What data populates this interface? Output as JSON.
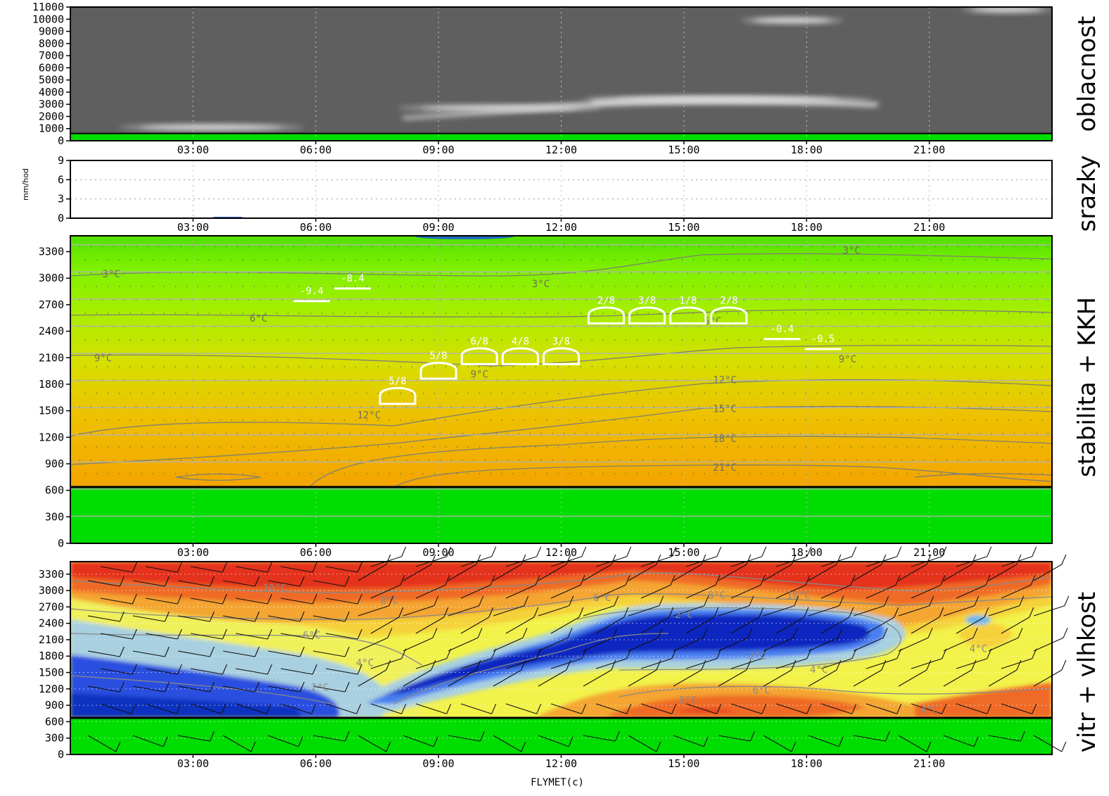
{
  "colors": {
    "cloud_bg": "#5f5f5f",
    "ground": "#00dd00",
    "frame": "#000000"
  },
  "credit": "FLYMET(c)",
  "time_ticks": [
    "03:00",
    "06:00",
    "09:00",
    "12:00",
    "15:00",
    "18:00",
    "21:00"
  ],
  "panels": [
    {
      "id": "cloud",
      "title": "oblacnost",
      "y_ticks": [
        "0",
        "1000",
        "2000",
        "3000",
        "4000",
        "5000",
        "6000",
        "7000",
        "8000",
        "9000",
        "10000",
        "11000"
      ]
    },
    {
      "id": "precip",
      "title": "srazky",
      "unit": "mm/hod",
      "y_ticks": [
        "0",
        "3",
        "6",
        "9"
      ]
    },
    {
      "id": "stability",
      "title": "stabilita + KKH",
      "y_ticks": [
        "0",
        "300",
        "600",
        "900",
        "1200",
        "1500",
        "1800",
        "2100",
        "2400",
        "2700",
        "3000",
        "3300"
      ]
    },
    {
      "id": "wind",
      "title": "vitr + vlhkost",
      "y_ticks": [
        "0",
        "300",
        "600",
        "900",
        "1200",
        "1500",
        "1800",
        "2100",
        "2400",
        "2700",
        "3000",
        "3300"
      ]
    }
  ],
  "chart_data": [
    {
      "type": "heatmap",
      "title": "oblacnost",
      "xlabel": "",
      "ylabel": "",
      "x_range_hours": [
        0,
        24
      ],
      "ylim": [
        0,
        11000
      ],
      "cloud_layers": [
        {
          "start_h": 1.2,
          "end_h": 5.7,
          "alt": 1100
        },
        {
          "start_h": 8.0,
          "end_h": 13.0,
          "alt": 2700
        },
        {
          "start_h": 12.5,
          "end_h": 19.6,
          "alt": 3400
        },
        {
          "start_h": 16.4,
          "end_h": 18.9,
          "alt": 9900
        },
        {
          "start_h": 21.8,
          "end_h": 24.0,
          "alt": 10800
        }
      ],
      "ground_alt": 600
    },
    {
      "type": "line",
      "title": "srazky",
      "ylabel": "mm/hod",
      "ylim": [
        0,
        9
      ],
      "x_range_hours": [
        0,
        24
      ],
      "precip_trace": [
        {
          "start_h": 3.5,
          "end_h": 4.2,
          "value": 0.1
        }
      ]
    },
    {
      "type": "heatmap",
      "title": "stabilita + KKH",
      "ylim": [
        0,
        3400
      ],
      "x_range_hours": [
        0,
        24
      ],
      "ground_alt": 600,
      "isotherm_labels": [
        {
          "text": "3°C",
          "h": 1.0,
          "alt": 2980
        },
        {
          "text": "3°C",
          "h": 11.5,
          "alt": 2870
        },
        {
          "text": "3°C",
          "h": 19.1,
          "alt": 3240
        },
        {
          "text": "6°C",
          "h": 4.6,
          "alt": 2490
        },
        {
          "text": "6°C",
          "h": 15.7,
          "alt": 2460
        },
        {
          "text": "9°C",
          "h": 0.8,
          "alt": 2050
        },
        {
          "text": "9°C",
          "h": 10.0,
          "alt": 1870
        },
        {
          "text": "9°C",
          "h": 19.0,
          "alt": 2040
        },
        {
          "text": "12°C",
          "h": 7.3,
          "alt": 1420
        },
        {
          "text": "12°C",
          "h": 16.0,
          "alt": 1810
        },
        {
          "text": "15°C",
          "h": 16.0,
          "alt": 1490
        },
        {
          "text": "18°C",
          "h": 16.0,
          "alt": 1160
        },
        {
          "text": "21°C",
          "h": 16.0,
          "alt": 840
        }
      ],
      "stability_labels": [
        {
          "text": "-9.4",
          "h": 5.9,
          "alt": 2740
        },
        {
          "text": "-8.4",
          "h": 6.9,
          "alt": 2880
        },
        {
          "text": "-0.4",
          "h": 17.4,
          "alt": 2320
        },
        {
          "text": "-0.5",
          "h": 18.4,
          "alt": 2210
        }
      ],
      "cloud_cover_labels": [
        {
          "text": "5/8",
          "h": 8.0,
          "alt": 1650
        },
        {
          "text": "5/8",
          "h": 9.0,
          "alt": 1930
        },
        {
          "text": "6/8",
          "h": 10.0,
          "alt": 2090
        },
        {
          "text": "4/8",
          "h": 11.0,
          "alt": 2090
        },
        {
          "text": "3/8",
          "h": 12.0,
          "alt": 2090
        },
        {
          "text": "2/8",
          "h": 13.1,
          "alt": 2540
        },
        {
          "text": "3/8",
          "h": 14.1,
          "alt": 2540
        },
        {
          "text": "1/8",
          "h": 15.1,
          "alt": 2540
        },
        {
          "text": "2/8",
          "h": 16.1,
          "alt": 2540
        }
      ]
    },
    {
      "type": "heatmap",
      "title": "vitr + vlhkost",
      "ylim": [
        0,
        3400
      ],
      "x_range_hours": [
        0,
        24
      ],
      "ground_alt": 600,
      "temperature_labels": [
        {
          "text": "10°C",
          "h": 5.0,
          "alt": 3050
        },
        {
          "text": "8°C",
          "h": 7.8,
          "alt": 2820
        },
        {
          "text": "6°C",
          "h": 5.9,
          "alt": 2180
        },
        {
          "text": "4°C",
          "h": 7.2,
          "alt": 1680
        },
        {
          "text": "2°C",
          "h": 6.1,
          "alt": 1230
        },
        {
          "text": "6°C",
          "h": 13.0,
          "alt": 2870
        },
        {
          "text": "2°C",
          "h": 15.0,
          "alt": 2560
        },
        {
          "text": "2°C",
          "h": 16.8,
          "alt": 1800
        },
        {
          "text": "4°C",
          "h": 18.3,
          "alt": 1560
        },
        {
          "text": "4°C",
          "h": 22.2,
          "alt": 1940
        },
        {
          "text": "6°C",
          "h": 16.9,
          "alt": 1180
        },
        {
          "text": "8°C",
          "h": 15.1,
          "alt": 1000
        },
        {
          "text": "4°C",
          "h": 21.0,
          "alt": 820
        },
        {
          "text": "8°C",
          "h": 15.8,
          "alt": 2920
        },
        {
          "text": "10°C",
          "h": 17.8,
          "alt": 2920
        }
      ]
    }
  ]
}
